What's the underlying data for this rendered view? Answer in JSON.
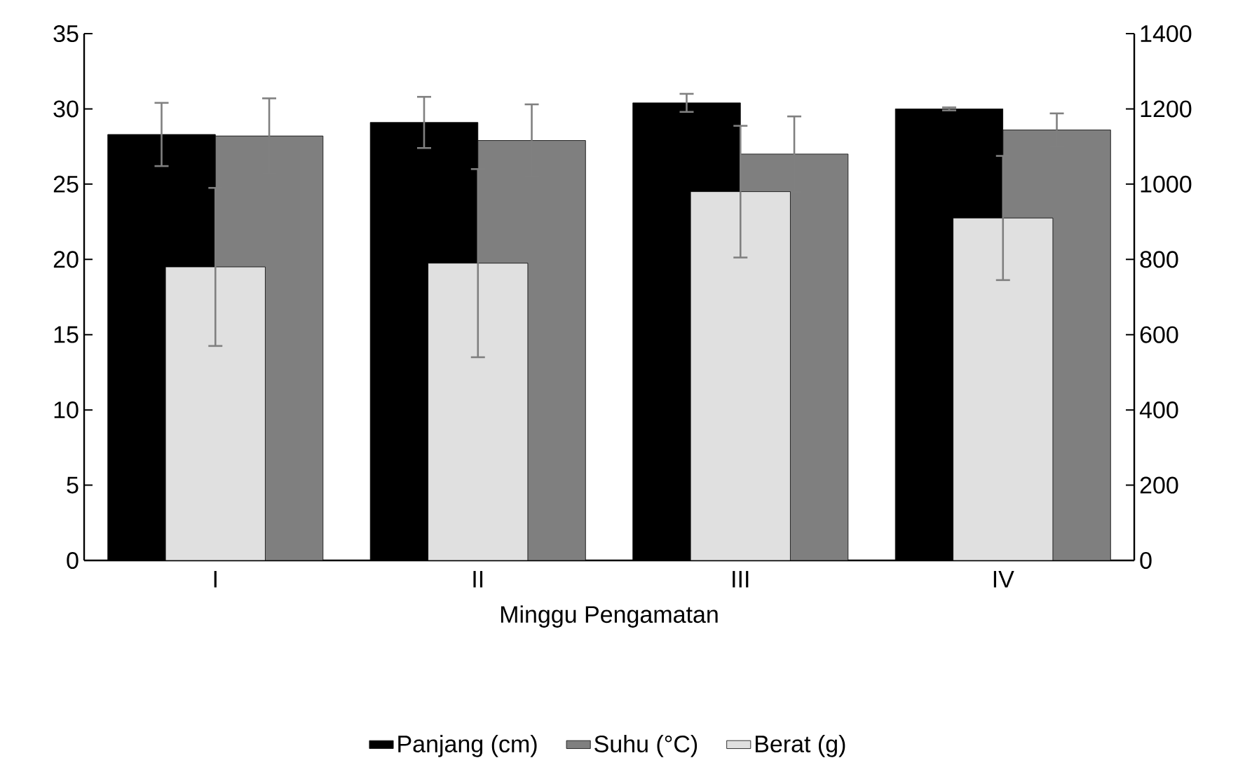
{
  "chart_data": {
    "type": "bar",
    "xlabel": "Minggu Pengamatan",
    "categories": [
      "I",
      "II",
      "III",
      "IV"
    ],
    "series": [
      {
        "name": "Panjang (cm)",
        "color": "#000000",
        "values": [
          28.3,
          29.1,
          30.4,
          30.0
        ],
        "errors": [
          2.1,
          1.7,
          0.6,
          0.1
        ]
      },
      {
        "name": "Suhu (°C)",
        "color": "#7f7f7f",
        "values": [
          28.2,
          27.9,
          27.0,
          28.6
        ],
        "errors": [
          2.5,
          2.4,
          2.5,
          1.1
        ]
      },
      {
        "name": "Berat (g)",
        "color": "#e0e0e0",
        "axis": "y2",
        "values": [
          780,
          790,
          980,
          910
        ],
        "errors": [
          210,
          250,
          175,
          165
        ]
      }
    ],
    "ylim": [
      0,
      35
    ],
    "yticks": [
      0,
      5,
      10,
      15,
      20,
      25,
      30,
      35
    ],
    "y2lim": [
      0,
      1400
    ],
    "y2ticks": [
      0,
      200,
      400,
      600,
      800,
      1000,
      1200,
      1400
    ],
    "legend": "bottom",
    "grid": false
  }
}
